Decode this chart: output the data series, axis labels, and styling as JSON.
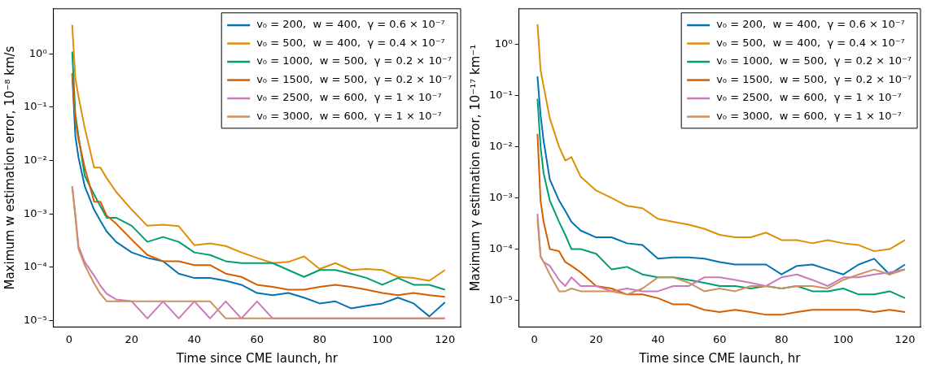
{
  "chart_data": [
    {
      "type": "line",
      "xlabel": "Time since CME launch, hr",
      "ylabel": "Maximum w estimation error, 10⁻⁸ km/s",
      "log": true,
      "legend": "top right",
      "marker": "none",
      "line_style": "solid",
      "xlim": [
        -5,
        125
      ],
      "xticks": [
        0,
        20,
        40,
        60,
        80,
        100,
        120
      ],
      "ylim": [
        7.6e-06,
        7
      ],
      "yticks": [
        {
          "value": 1e-05,
          "label": "10⁻⁵"
        },
        {
          "value": 0.0001,
          "label": "10⁻⁴"
        },
        {
          "value": 0.001,
          "label": "10⁻³"
        },
        {
          "value": 0.01,
          "label": "10⁻²"
        },
        {
          "value": 0.1,
          "label": "10⁻¹"
        },
        {
          "value": 1,
          "label": "10⁰"
        }
      ],
      "x": [
        1,
        2,
        3,
        5,
        8,
        10,
        12,
        15,
        20,
        25,
        30,
        35,
        40,
        45,
        50,
        55,
        60,
        65,
        70,
        75,
        80,
        85,
        90,
        95,
        100,
        105,
        110,
        115,
        120
      ],
      "series": [
        {
          "name": "v₀ = 200,  w = 400,  γ = 0.6 × 10⁻⁷",
          "color": "#0173b2",
          "values": [
            0.43,
            0.029,
            0.0115,
            0.0033,
            0.0012,
            0.00074,
            0.00047,
            0.0003,
            0.00019,
            0.00015,
            0.00013,
            7.6e-05,
            6.3e-05,
            6.3e-05,
            5.6e-05,
            4.7e-05,
            3.3e-05,
            3e-05,
            3.3e-05,
            2.7e-05,
            2.1e-05,
            2.3e-05,
            1.7e-05,
            1.9e-05,
            2.1e-05,
            2.7e-05,
            2.1e-05,
            1.2e-05,
            2.2e-05
          ]
        },
        {
          "name": "v₀ = 500,  w = 400,  γ = 0.4 × 10⁻⁷",
          "color": "#de8f05",
          "values": [
            3.5,
            0.35,
            0.16,
            0.041,
            0.0074,
            0.0074,
            0.0047,
            0.0026,
            0.0012,
            0.0006,
            0.00063,
            0.00059,
            0.00026,
            0.00028,
            0.00025,
            0.00019,
            0.00015,
            0.00012,
            0.000126,
            0.00016,
            9.3e-05,
            0.00012,
            8.9e-05,
            9.3e-05,
            8.9e-05,
            6.6e-05,
            6.3e-05,
            5.6e-05,
            8.9e-05
          ]
        },
        {
          "name": "v₀ = 1000,  w = 500,  γ = 0.2 × 10⁻⁷",
          "color": "#029e73",
          "values": [
            1.1,
            0.074,
            0.029,
            0.0052,
            0.0023,
            0.0014,
            0.00085,
            0.00085,
            0.0006,
            0.0003,
            0.00037,
            0.0003,
            0.00019,
            0.00017,
            0.00013,
            0.00012,
            0.00012,
            0.00012,
            8.9e-05,
            6.6e-05,
            8.9e-05,
            8.9e-05,
            7.6e-05,
            6.3e-05,
            4.7e-05,
            6.3e-05,
            4.7e-05,
            4.7e-05,
            3.8e-05
          ]
        },
        {
          "name": "v₀ = 1500,  w = 500,  γ = 0.2 × 10⁻⁷",
          "color": "#d55e00",
          "values": [
            0.43,
            0.058,
            0.025,
            0.0074,
            0.0017,
            0.0017,
            0.00093,
            0.00066,
            0.00033,
            0.00017,
            0.00013,
            0.00013,
            0.00011,
            0.00011,
            7.6e-05,
            6.6e-05,
            4.7e-05,
            4.3e-05,
            3.8e-05,
            3.8e-05,
            4.3e-05,
            4.7e-05,
            4.3e-05,
            3.8e-05,
            3.3e-05,
            3e-05,
            3.3e-05,
            3e-05,
            2.8e-05
          ]
        },
        {
          "name": "v₀ = 2500,  w = 600,  γ = 1 × 10⁻⁷",
          "color": "#cc78bc",
          "values": [
            0.0033,
            0.001,
            0.00025,
            0.000126,
            7e-05,
            4.5e-05,
            3.2e-05,
            2.5e-05,
            2.3e-05,
            1.1e-05,
            2.3e-05,
            1.1e-05,
            2.3e-05,
            1.1e-05,
            2.3e-05,
            1.1e-05,
            2.3e-05,
            1.1e-05,
            1.1e-05,
            1.1e-05,
            1.1e-05,
            1.1e-05,
            1.1e-05,
            1.1e-05,
            1.1e-05,
            1.1e-05,
            1.1e-05,
            1.1e-05,
            1.1e-05
          ]
        },
        {
          "name": "v₀ = 3000,  w = 600,  γ = 1 × 10⁻⁷",
          "color": "#ca9161",
          "values": [
            0.0033,
            0.00089,
            0.00022,
            0.00011,
            5e-05,
            3.2e-05,
            2.3e-05,
            2.3e-05,
            2.3e-05,
            2.3e-05,
            2.3e-05,
            2.3e-05,
            2.3e-05,
            2.3e-05,
            1.1e-05,
            1.1e-05,
            1.1e-05,
            1.1e-05,
            1.1e-05,
            1.1e-05,
            1.1e-05,
            1.1e-05,
            1.1e-05,
            1.1e-05,
            1.1e-05,
            1.1e-05,
            1.1e-05,
            1.1e-05,
            1.1e-05
          ]
        }
      ]
    },
    {
      "type": "line",
      "xlabel": "Time since CME launch, hr",
      "ylabel": "Maximum γ estimation error, 10⁻¹⁷ km⁻¹",
      "log": true,
      "legend": "top right",
      "marker": "none",
      "line_style": "solid",
      "xlim": [
        -5,
        125
      ],
      "xticks": [
        0,
        20,
        40,
        60,
        80,
        100,
        120
      ],
      "ylim": [
        3e-06,
        5
      ],
      "yticks": [
        {
          "value": 1e-05,
          "label": "10⁻⁵"
        },
        {
          "value": 0.0001,
          "label": "10⁻⁴"
        },
        {
          "value": 0.001,
          "label": "10⁻³"
        },
        {
          "value": 0.01,
          "label": "10⁻²"
        },
        {
          "value": 0.1,
          "label": "10⁻¹"
        },
        {
          "value": 1,
          "label": "10⁰"
        }
      ],
      "x": [
        1,
        2,
        3,
        5,
        8,
        10,
        12,
        15,
        20,
        25,
        30,
        35,
        40,
        45,
        50,
        55,
        60,
        65,
        70,
        75,
        80,
        85,
        90,
        95,
        100,
        105,
        110,
        115,
        120
      ],
      "series": [
        {
          "name": "v₀ = 200,  w = 400,  γ = 0.6 × 10⁻⁷",
          "color": "#0173b2",
          "values": [
            0.24,
            0.042,
            0.013,
            0.0023,
            0.00089,
            0.00056,
            0.00034,
            0.00023,
            0.00017,
            0.00017,
            0.00013,
            0.00012,
            6.5e-05,
            6.9e-05,
            6.9e-05,
            6.5e-05,
            5.6e-05,
            5e-05,
            5e-05,
            5e-05,
            3.2e-05,
            4.7e-05,
            5e-05,
            4e-05,
            3.2e-05,
            5e-05,
            6.5e-05,
            3.2e-05,
            5e-05
          ]
        },
        {
          "name": "v₀ = 500,  w = 400,  γ = 0.4 × 10⁻⁷",
          "color": "#de8f05",
          "values": [
            2.5,
            0.32,
            0.15,
            0.036,
            0.01,
            0.0054,
            0.0063,
            0.0026,
            0.0014,
            0.001,
            0.0007,
            0.00063,
            0.00039,
            0.00034,
            0.0003,
            0.00025,
            0.00019,
            0.00017,
            0.00017,
            0.00021,
            0.00015,
            0.00015,
            0.00013,
            0.00015,
            0.00013,
            0.00012,
            9.1e-05,
            0.0001,
            0.00015
          ]
        },
        {
          "name": "v₀ = 1000,  w = 500,  γ = 0.2 × 10⁻⁷",
          "color": "#029e73",
          "values": [
            0.087,
            0.01,
            0.003,
            0.00089,
            0.00034,
            0.00019,
            0.0001,
            0.0001,
            8.1e-05,
            4e-05,
            4.5e-05,
            3.2e-05,
            2.8e-05,
            2.8e-05,
            2.5e-05,
            2.2e-05,
            1.9e-05,
            1.9e-05,
            1.7e-05,
            1.9e-05,
            1.7e-05,
            1.9e-05,
            1.5e-05,
            1.5e-05,
            1.7e-05,
            1.3e-05,
            1.3e-05,
            1.5e-05,
            1.1e-05
          ]
        },
        {
          "name": "v₀ = 1500,  w = 500,  γ = 0.2 × 10⁻⁷",
          "color": "#d55e00",
          "values": [
            0.018,
            0.00089,
            0.00034,
            0.0001,
            9.1e-05,
            5.6e-05,
            4.7e-05,
            3.5e-05,
            1.9e-05,
            1.7e-05,
            1.3e-05,
            1.3e-05,
            1.1e-05,
            8.3e-06,
            8.3e-06,
            6.5e-06,
            5.9e-06,
            6.5e-06,
            5.9e-06,
            5.2e-06,
            5.2e-06,
            5.9e-06,
            6.5e-06,
            6.5e-06,
            6.5e-06,
            6.5e-06,
            5.9e-06,
            6.5e-06,
            5.9e-06
          ]
        },
        {
          "name": "v₀ = 2500,  w = 600,  γ = 1 × 10⁻⁷",
          "color": "#cc78bc",
          "values": [
            0.00049,
            7.2e-05,
            5.6e-05,
            4.7e-05,
            2.5e-05,
            1.9e-05,
            2.8e-05,
            1.9e-05,
            1.9e-05,
            1.5e-05,
            1.7e-05,
            1.5e-05,
            1.5e-05,
            1.9e-05,
            1.9e-05,
            2.8e-05,
            2.8e-05,
            2.5e-05,
            2.2e-05,
            1.9e-05,
            2.8e-05,
            3.2e-05,
            2.5e-05,
            1.9e-05,
            2.8e-05,
            2.8e-05,
            3.2e-05,
            3.5e-05,
            4e-05
          ]
        },
        {
          "name": "v₀ = 3000,  w = 600,  γ = 1 × 10⁻⁷",
          "color": "#ca9161",
          "values": [
            0.00039,
            7.2e-05,
            5.6e-05,
            3.2e-05,
            1.5e-05,
            1.5e-05,
            1.7e-05,
            1.5e-05,
            1.5e-05,
            1.5e-05,
            1.3e-05,
            1.7e-05,
            2.8e-05,
            2.8e-05,
            2.2e-05,
            1.5e-05,
            1.7e-05,
            1.5e-05,
            1.9e-05,
            1.9e-05,
            1.7e-05,
            1.9e-05,
            1.9e-05,
            1.7e-05,
            2.5e-05,
            3.2e-05,
            4e-05,
            3.2e-05,
            4e-05
          ]
        }
      ]
    }
  ]
}
